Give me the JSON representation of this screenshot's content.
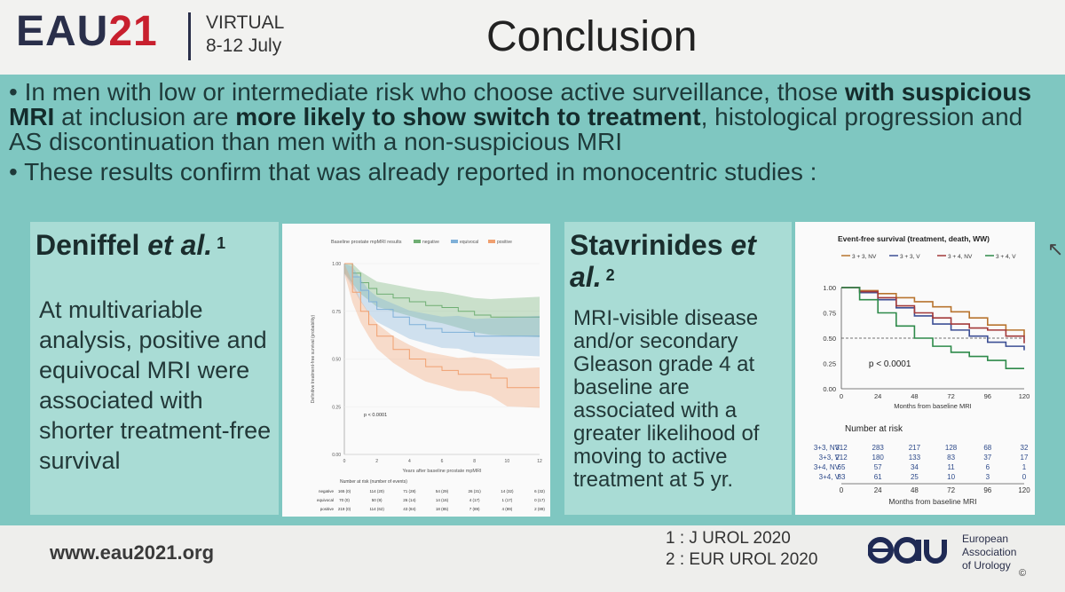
{
  "header": {
    "logo_prefix": "EAU",
    "logo_number": "21",
    "logo_line1": "VIRTUAL",
    "logo_line2": "8-12 July",
    "title": "Conclusion"
  },
  "bullets": {
    "b1_pre": "In men with low or intermediate risk who choose active surveillance, those ",
    "b1_bold1": "with suspicious MRI",
    "b1_mid": " at inclusion are ",
    "b1_bold2": "more likely to show switch to treatment",
    "b1_post": ", histological progression and AS discontinuation than men with a non-suspicious MRI",
    "b2": "These results confirm that was already reported in monocentric studies :"
  },
  "left_card": {
    "author": "Deniffel ",
    "etal": "et al.",
    "sup": " 1",
    "body": "At multivariable analysis, positive and equivocal MRI were associated with shorter treatment-free survival"
  },
  "right_card": {
    "author": "Stavrinides ",
    "etal": "et al.",
    "sup": " 2",
    "body": "MRI-visible disease and/or secondary Gleason grade 4 at baseline are associated with a greater likelihood of moving to active treatment at 5 yr."
  },
  "footer": {
    "url": "www.eau2021.org",
    "ref1": "1 : J UROL 2020",
    "ref2": "2 : EUR UROL 2020",
    "eau_line1": "European",
    "eau_line2": "Association",
    "eau_line3": "of Urology",
    "copyright": "©"
  },
  "chart_data": [
    {
      "type": "line",
      "title": "Baseline prostate mpMRI results",
      "legend": [
        "negative",
        "equivocal",
        "positive"
      ],
      "legend_position": "top",
      "colors": {
        "negative": "#6fae73",
        "equivocal": "#7fb0d8",
        "positive": "#f0a070"
      },
      "xlabel": "Years after baseline prostate mpMRI",
      "ylabel": "Definitive treatment-free survival (probability)",
      "xlim": [
        0,
        12
      ],
      "ylim": [
        0,
        1
      ],
      "x_ticks": [
        "0",
        "2",
        "4",
        "6",
        "8",
        "10",
        "12"
      ],
      "y_ticks": [
        "0.00",
        "0.25",
        "0.50",
        "0.75",
        "1.00"
      ],
      "annotation": "p < 0.0001",
      "series": [
        {
          "name": "negative",
          "x": [
            0,
            0.5,
            1,
            1.5,
            2,
            3,
            4,
            5,
            6,
            7,
            8,
            9,
            10,
            11,
            12
          ],
          "y": [
            1,
            0.95,
            0.9,
            0.87,
            0.84,
            0.82,
            0.8,
            0.78,
            0.77,
            0.75,
            0.73,
            0.72,
            0.72,
            0.72,
            0.72
          ]
        },
        {
          "name": "equivocal",
          "x": [
            0,
            0.5,
            1,
            1.5,
            2,
            3,
            4,
            5,
            6,
            7,
            8,
            9,
            10,
            11,
            12
          ],
          "y": [
            1,
            0.93,
            0.86,
            0.8,
            0.76,
            0.72,
            0.68,
            0.66,
            0.64,
            0.64,
            0.62,
            0.62,
            0.62,
            0.62,
            0.62
          ]
        },
        {
          "name": "positive",
          "x": [
            0,
            0.5,
            1,
            1.5,
            2,
            3,
            4,
            5,
            6,
            7,
            8,
            9,
            10,
            11,
            12
          ],
          "y": [
            1,
            0.85,
            0.75,
            0.68,
            0.62,
            0.55,
            0.5,
            0.46,
            0.44,
            0.42,
            0.42,
            0.4,
            0.35,
            0.35,
            0.35
          ]
        }
      ],
      "risk_table": {
        "title": "Number at risk (number of events)",
        "rows": [
          {
            "label": "negative",
            "values": [
              "165 (0)",
              "114 (20)",
              "71 (28)",
              "54 (29)",
              "26 (31)",
              "14 (32)",
              "6 (32)"
            ]
          },
          {
            "label": "equivocal",
            "values": [
              "70 (0)",
              "50 (9)",
              "26 (14)",
              "14 (16)",
              "4 (17)",
              "1 (17)",
              "0 (17)"
            ]
          },
          {
            "label": "positive",
            "values": [
              "219 (0)",
              "114 (62)",
              "43 (84)",
              "18 (85)",
              "7 (89)",
              "4 (89)",
              "2 (89)"
            ]
          }
        ]
      }
    },
    {
      "type": "line",
      "title": "Event-free survival (treatment, death, WW)",
      "legend": [
        "3 + 3, NV",
        "3 + 3, V",
        "3 + 4, NV",
        "3 + 4, V"
      ],
      "legend_position": "top",
      "colors": {
        "3 + 3, NV": "#b8742f",
        "3 + 3, V": "#3d4f95",
        "3 + 4, NV": "#a33a3a",
        "3 + 4, V": "#2e8a4a"
      },
      "xlabel": "Months from baseline MRI",
      "xlim": [
        0,
        120
      ],
      "ylim": [
        0,
        1
      ],
      "x_ticks": [
        "0",
        "24",
        "48",
        "72",
        "96",
        "120"
      ],
      "y_ticks": [
        "0.00",
        "0.25",
        "0.50",
        "0.75",
        "1.00"
      ],
      "annotation": "p < 0.0001",
      "series": [
        {
          "name": "3 + 3, NV",
          "x": [
            0,
            12,
            24,
            36,
            48,
            60,
            72,
            84,
            96,
            108,
            120
          ],
          "y": [
            1,
            0.97,
            0.94,
            0.9,
            0.86,
            0.81,
            0.76,
            0.7,
            0.63,
            0.58,
            0.52
          ]
        },
        {
          "name": "3 + 3, V",
          "x": [
            0,
            12,
            24,
            36,
            48,
            60,
            72,
            84,
            96,
            108,
            120
          ],
          "y": [
            1,
            0.95,
            0.88,
            0.8,
            0.72,
            0.64,
            0.58,
            0.52,
            0.46,
            0.42,
            0.38
          ]
        },
        {
          "name": "3 + 4, NV",
          "x": [
            0,
            12,
            24,
            36,
            48,
            60,
            72,
            84,
            96,
            108,
            120
          ],
          "y": [
            1,
            0.96,
            0.9,
            0.82,
            0.75,
            0.7,
            0.64,
            0.6,
            0.58,
            0.52,
            0.45
          ]
        },
        {
          "name": "3 + 4, V",
          "x": [
            0,
            12,
            24,
            36,
            48,
            60,
            72,
            84,
            96,
            108,
            120
          ],
          "y": [
            1,
            0.88,
            0.75,
            0.62,
            0.5,
            0.42,
            0.36,
            0.32,
            0.28,
            0.2,
            0.2
          ]
        }
      ],
      "reference_line": 0.5,
      "risk_table": {
        "title": "Number at risk",
        "rows": [
          {
            "label": "3+3, NV",
            "values": [
              "312",
              "283",
              "217",
              "128",
              "68",
              "32"
            ]
          },
          {
            "label": "3+3, V",
            "values": [
              "212",
              "180",
              "133",
              "83",
              "37",
              "17"
            ]
          },
          {
            "label": "3+4, NV",
            "values": [
              "65",
              "57",
              "34",
              "11",
              "6",
              "1"
            ]
          },
          {
            "label": "3+4, V",
            "values": [
              "83",
              "61",
              "25",
              "10",
              "3",
              "0"
            ]
          }
        ],
        "x_ticks": [
          "0",
          "24",
          "48",
          "72",
          "96",
          "120"
        ],
        "xlabel": "Months from baseline MRI"
      }
    }
  ]
}
